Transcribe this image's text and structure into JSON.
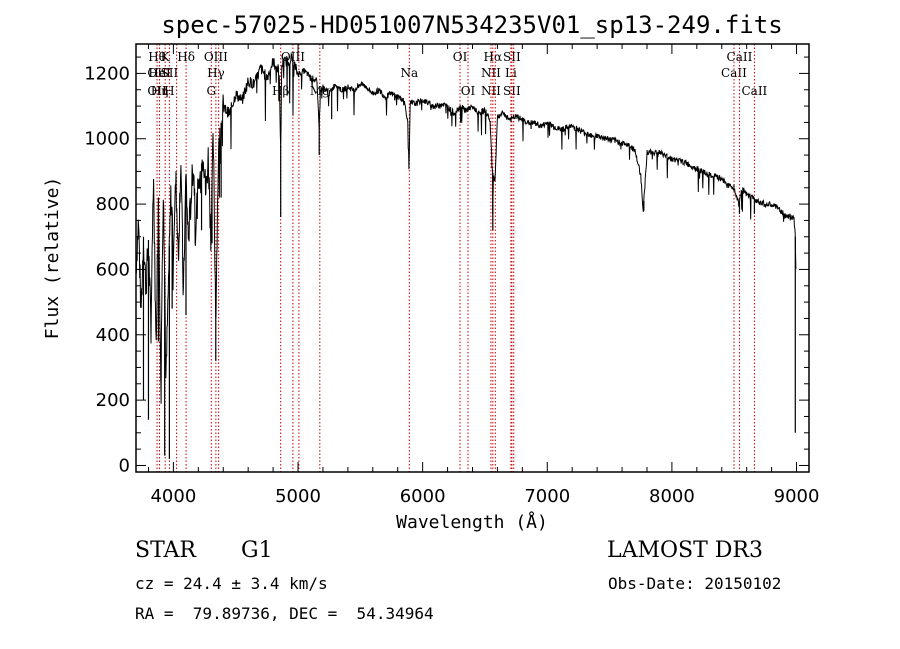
{
  "chart_data": {
    "type": "line",
    "title": "spec-57025-HD051007N534235V01_sp13-249.fits",
    "xlabel": "Wavelength (Å)",
    "ylabel": "Flux (relative)",
    "xlim": [
      3700,
      9100
    ],
    "ylim": [
      -20,
      1290
    ],
    "x_ticks": [
      4000,
      5000,
      6000,
      7000,
      8000,
      9000
    ],
    "y_ticks": [
      0,
      200,
      400,
      600,
      800,
      1000,
      1200
    ],
    "grid": false,
    "series": [
      {
        "x": [
          3700,
          3720,
          3740,
          3760,
          3780,
          3800,
          3820,
          3840,
          3860,
          3880,
          3900,
          3920,
          3940,
          3960,
          3980,
          4000,
          4020,
          4040,
          4060,
          4080,
          4100,
          4120,
          4140,
          4160,
          4180,
          4200,
          4220,
          4240,
          4260,
          4280,
          4300,
          4320,
          4340,
          4360,
          4380,
          4400,
          4450,
          4500,
          4550,
          4600,
          4650,
          4700,
          4750,
          4800,
          4850,
          4860,
          4870,
          4900,
          4950,
          5000,
          5050,
          5100,
          5150,
          5170,
          5180,
          5200,
          5250,
          5300,
          5350,
          5400,
          5450,
          5500,
          5550,
          5600,
          5650,
          5700,
          5750,
          5800,
          5850,
          5880,
          5890,
          5900,
          5950,
          6000,
          6050,
          6100,
          6150,
          6200,
          6250,
          6300,
          6350,
          6400,
          6450,
          6500,
          6540,
          6560,
          6580,
          6600,
          6650,
          6700,
          6750,
          6800,
          6850,
          6900,
          6950,
          7000,
          7100,
          7200,
          7300,
          7400,
          7500,
          7600,
          7700,
          7750,
          7770,
          7800,
          7900,
          8000,
          8100,
          8200,
          8300,
          8400,
          8450,
          8500,
          8540,
          8560,
          8600,
          8650,
          8700,
          8750,
          8800,
          8850,
          8900,
          8950,
          8980,
          8990,
          8995
        ],
        "y": [
          620,
          760,
          480,
          700,
          560,
          690,
          430,
          920,
          380,
          820,
          300,
          900,
          260,
          560,
          840,
          700,
          880,
          650,
          960,
          520,
          900,
          700,
          820,
          940,
          760,
          860,
          900,
          980,
          840,
          960,
          720,
          1010,
          460,
          950,
          1040,
          1100,
          1080,
          1140,
          1120,
          1180,
          1170,
          1220,
          1190,
          1240,
          1210,
          950,
          1230,
          1240,
          1250,
          1200,
          1210,
          1190,
          1180,
          1040,
          1150,
          1160,
          1140,
          1170,
          1150,
          1160,
          1150,
          1170,
          1160,
          1140,
          1150,
          1130,
          1140,
          1130,
          1120,
          1060,
          910,
          1110,
          1110,
          1120,
          1110,
          1100,
          1110,
          1100,
          1080,
          1100,
          1090,
          1100,
          1080,
          1090,
          1060,
          900,
          870,
          1070,
          1080,
          1060,
          1070,
          1060,
          1050,
          1050,
          1040,
          1050,
          1030,
          1040,
          1020,
          1010,
          1000,
          990,
          970,
          890,
          780,
          960,
          960,
          940,
          930,
          910,
          890,
          880,
          860,
          850,
          800,
          850,
          830,
          820,
          810,
          800,
          800,
          790,
          770,
          760,
          760,
          700,
          600
        ],
        "dip_x": [
          3760,
          3800,
          3880,
          3900,
          3930,
          3968,
          3990,
          4101,
          4226,
          4310,
          4340,
          4383,
          4861,
          5170,
          5270,
          5890,
          6563,
          6563,
          6870,
          7605,
          7775,
          8498,
          8542,
          8662,
          8990
        ],
        "dip_y": [
          200,
          140,
          380,
          260,
          30,
          20,
          480,
          460,
          720,
          680,
          320,
          820,
          760,
          950,
          1060,
          910,
          720,
          770,
          1030,
          980,
          780,
          860,
          770,
          770,
          100
        ]
      }
    ],
    "line_marks": [
      {
        "wl": 3869,
        "top": "Hθ",
        "mid": "OII",
        "bot": "OII"
      },
      {
        "wl": 3889,
        "top": "",
        "mid": "HeI",
        "bot": "Hη"
      },
      {
        "wl": 3934,
        "top": "K",
        "mid": "",
        "bot": ""
      },
      {
        "wl": 3968,
        "top": "",
        "mid": "SII",
        "bot": "H"
      },
      {
        "wl": 4026,
        "top": "",
        "mid": "",
        "bot": ""
      },
      {
        "wl": 4102,
        "top": "Hδ",
        "mid": "",
        "bot": ""
      },
      {
        "wl": 4304,
        "top": "",
        "mid": "",
        "bot": "G"
      },
      {
        "wl": 4341,
        "top": "OIII",
        "mid": "Hγ",
        "bot": ""
      },
      {
        "wl": 4363,
        "top": "",
        "mid": "",
        "bot": ""
      },
      {
        "wl": 4861,
        "top": "",
        "mid": "",
        "bot": "Hβ"
      },
      {
        "wl": 4959,
        "top": "OIII",
        "mid": "",
        "bot": ""
      },
      {
        "wl": 5007,
        "top": "",
        "mid": "",
        "bot": ""
      },
      {
        "wl": 5175,
        "top": "",
        "mid": "",
        "bot": "Mg"
      },
      {
        "wl": 5893,
        "top": "",
        "mid": "Na",
        "bot": ""
      },
      {
        "wl": 6300,
        "top": "OI",
        "mid": "",
        "bot": ""
      },
      {
        "wl": 6364,
        "top": "",
        "mid": "",
        "bot": "OI"
      },
      {
        "wl": 6548,
        "top": "",
        "mid": "NII",
        "bot": "NII"
      },
      {
        "wl": 6563,
        "top": "Hα",
        "mid": "",
        "bot": ""
      },
      {
        "wl": 6583,
        "top": "",
        "mid": "",
        "bot": ""
      },
      {
        "wl": 6708,
        "top": "",
        "mid": "Li",
        "bot": ""
      },
      {
        "wl": 6716,
        "top": "SII",
        "mid": "",
        "bot": "SII"
      },
      {
        "wl": 6731,
        "top": "",
        "mid": "",
        "bot": ""
      },
      {
        "wl": 8498,
        "top": "",
        "mid": "CaII",
        "bot": ""
      },
      {
        "wl": 8542,
        "top": "CaII",
        "mid": "",
        "bot": ""
      },
      {
        "wl": 8662,
        "top": "",
        "mid": "",
        "bot": "CaII"
      }
    ],
    "line_color": "#cc0000"
  },
  "info": {
    "class": "STAR",
    "subclass": "G1",
    "survey": "LAMOST DR3",
    "cz": "cz = 24.4 ± 3.4 km/s",
    "obs_date": "Obs-Date: 20150102",
    "radec": "RA =  79.89736, DEC =  54.34964"
  }
}
